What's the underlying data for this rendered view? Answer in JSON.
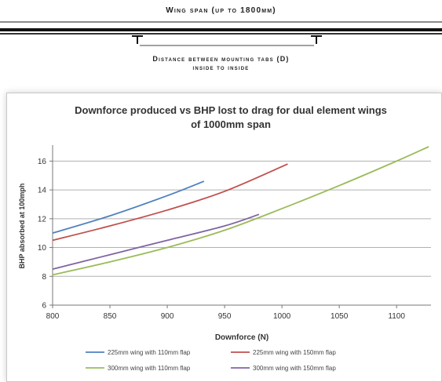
{
  "diagram": {
    "span_label": "Wing span (up to 1800mm)",
    "distance_label": "Distance between mounting tabs (D)",
    "distance_sublabel": "inside to inside"
  },
  "chart_data": {
    "type": "line",
    "title_line1": "Downforce produced vs BHP lost to drag for dual element wings",
    "title_line2": "of 1000mm span",
    "xlabel": "Downforce (N)",
    "ylabel": "BHP absorbed at 100mph",
    "xlim": [
      800,
      1130
    ],
    "ylim": [
      6,
      17
    ],
    "xticks": [
      800,
      850,
      900,
      950,
      1000,
      1050,
      1100
    ],
    "yticks": [
      6,
      8,
      10,
      12,
      14,
      16
    ],
    "grid": "horizontal",
    "legend_position": "bottom",
    "series": [
      {
        "name": "225mm wing with 110mm flap",
        "color": "#4f81bd",
        "x": [
          800,
          850,
          900,
          932
        ],
        "y": [
          11.0,
          12.2,
          13.6,
          14.6
        ]
      },
      {
        "name": "225mm wing with 150mm flap",
        "color": "#c0504d",
        "x": [
          800,
          850,
          900,
          950,
          1005
        ],
        "y": [
          10.5,
          11.5,
          12.6,
          13.9,
          15.8
        ]
      },
      {
        "name": "300mm wing with 110mm flap",
        "color": "#9bbb59",
        "x": [
          800,
          850,
          900,
          950,
          1000,
          1050,
          1100,
          1128
        ],
        "y": [
          8.1,
          9.0,
          10.0,
          11.2,
          12.7,
          14.3,
          16.0,
          17.0
        ]
      },
      {
        "name": "300mm wing with 150mm flap",
        "color": "#8064a2",
        "x": [
          800,
          850,
          900,
          950,
          980
        ],
        "y": [
          8.5,
          9.5,
          10.5,
          11.5,
          12.3
        ]
      }
    ]
  }
}
